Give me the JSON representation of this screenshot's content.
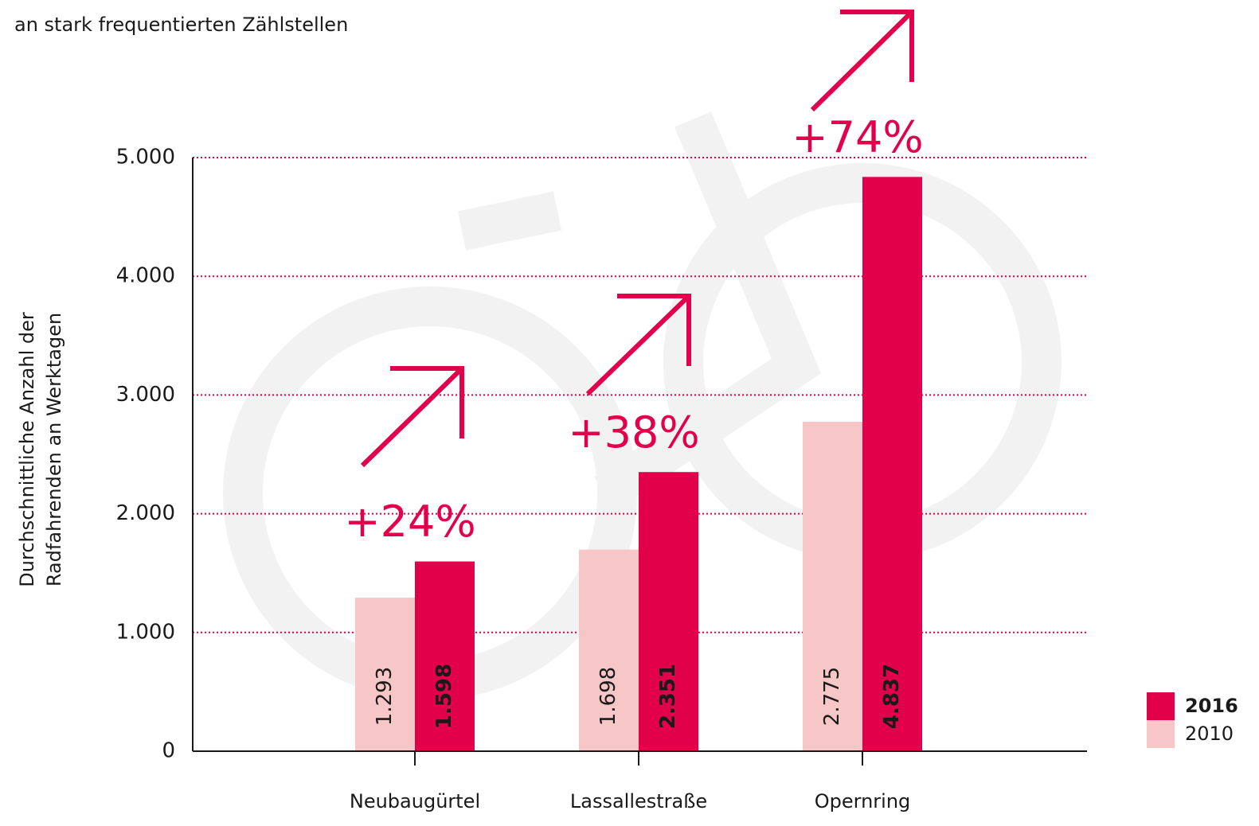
{
  "chart_data": {
    "type": "bar",
    "subtitle": "an stark frequentierten Zählstellen",
    "ylabel": [
      "Durchschnittliche Anzahl der",
      "Radfahrenden an Werktagen"
    ],
    "categories": [
      "Neubaugürtel",
      "Lassallestraße",
      "Opernring"
    ],
    "series": [
      {
        "name": "2010",
        "color": "#f7c6c6",
        "values": [
          1293,
          1698,
          2775
        ],
        "value_labels": [
          "1.293",
          "1.698",
          "2.775"
        ]
      },
      {
        "name": "2016",
        "color": "#e2004a",
        "values": [
          1598,
          2351,
          4837
        ],
        "value_labels": [
          "1.598",
          "2.351",
          "4.837"
        ]
      }
    ],
    "annotations": [
      "+24%",
      "+38%",
      "+74%"
    ],
    "annotation_color": "#e2004a",
    "ylim": [
      0,
      5000
    ],
    "yticks": [
      0,
      {
        "value": 1000,
        "label": "1.000"
      },
      {
        "value": 2000,
        "label": "2.000"
      },
      {
        "value": 3000,
        "label": "3.000"
      },
      {
        "value": 4000,
        "label": "4.000"
      },
      {
        "value": 5000,
        "label": "5.000"
      }
    ],
    "grid": true,
    "legend": "bottom-right"
  }
}
